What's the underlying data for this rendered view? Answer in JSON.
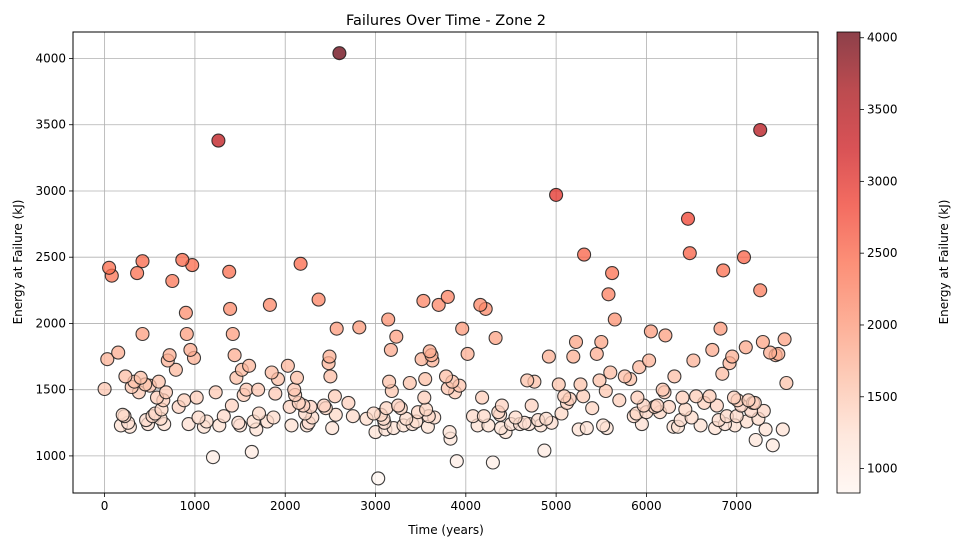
{
  "chart_data": {
    "type": "scatter",
    "title": "Failures Over Time - Zone 2",
    "xlabel": "Time (years)",
    "ylabel": "Energy at Failure (kJ)",
    "xlim": [
      -350,
      7900
    ],
    "ylim": [
      720,
      4200
    ],
    "xticks": [
      0,
      1000,
      2000,
      3000,
      4000,
      5000,
      6000,
      7000
    ],
    "yticks": [
      1000,
      1500,
      2000,
      2500,
      3000,
      3500,
      4000
    ],
    "grid": true,
    "colorbar": {
      "label": "Energy at Failure (kJ)",
      "min": 830,
      "max": 4040,
      "ticks": [
        1000,
        1500,
        2000,
        2500,
        3000,
        3500,
        4000
      ],
      "colormap": "Reds",
      "alpha": 0.75
    },
    "points": [
      [
        0,
        1505
      ],
      [
        30,
        1730
      ],
      [
        50,
        2420
      ],
      [
        80,
        2360
      ],
      [
        150,
        1780
      ],
      [
        180,
        1230
      ],
      [
        200,
        1310
      ],
      [
        220,
        1300
      ],
      [
        230,
        1600
      ],
      [
        260,
        1250
      ],
      [
        280,
        1220
      ],
      [
        300,
        1520
      ],
      [
        330,
        1560
      ],
      [
        360,
        2380
      ],
      [
        380,
        1480
      ],
      [
        400,
        1590
      ],
      [
        420,
        2470
      ],
      [
        420,
        1920
      ],
      [
        450,
        1540
      ],
      [
        460,
        1270
      ],
      [
        480,
        1240
      ],
      [
        500,
        1530
      ],
      [
        530,
        1300
      ],
      [
        560,
        1320
      ],
      [
        580,
        1440
      ],
      [
        600,
        1560
      ],
      [
        620,
        1280
      ],
      [
        630,
        1350
      ],
      [
        650,
        1420
      ],
      [
        660,
        1240
      ],
      [
        680,
        1480
      ],
      [
        700,
        1720
      ],
      [
        720,
        1760
      ],
      [
        750,
        2320
      ],
      [
        790,
        1650
      ],
      [
        820,
        1370
      ],
      [
        860,
        2480
      ],
      [
        880,
        1420
      ],
      [
        900,
        2080
      ],
      [
        910,
        1920
      ],
      [
        930,
        1240
      ],
      [
        950,
        1800
      ],
      [
        970,
        2440
      ],
      [
        990,
        1740
      ],
      [
        1020,
        1440
      ],
      [
        1040,
        1290
      ],
      [
        1100,
        1220
      ],
      [
        1130,
        1260
      ],
      [
        1200,
        990
      ],
      [
        1230,
        1480
      ],
      [
        1260,
        3380
      ],
      [
        1270,
        1230
      ],
      [
        1320,
        1300
      ],
      [
        1380,
        2390
      ],
      [
        1390,
        2110
      ],
      [
        1410,
        1380
      ],
      [
        1420,
        1920
      ],
      [
        1440,
        1760
      ],
      [
        1460,
        1590
      ],
      [
        1480,
        1250
      ],
      [
        1500,
        1230
      ],
      [
        1520,
        1650
      ],
      [
        1540,
        1460
      ],
      [
        1570,
        1500
      ],
      [
        1600,
        1680
      ],
      [
        1630,
        1030
      ],
      [
        1650,
        1260
      ],
      [
        1680,
        1200
      ],
      [
        1700,
        1500
      ],
      [
        1710,
        1320
      ],
      [
        1800,
        1260
      ],
      [
        1830,
        2140
      ],
      [
        1850,
        1630
      ],
      [
        1870,
        1290
      ],
      [
        1890,
        1470
      ],
      [
        1920,
        1580
      ],
      [
        2030,
        1680
      ],
      [
        2050,
        1370
      ],
      [
        2070,
        1230
      ],
      [
        2100,
        1500
      ],
      [
        2110,
        1460
      ],
      [
        2130,
        1590
      ],
      [
        2150,
        1400
      ],
      [
        2170,
        2450
      ],
      [
        2200,
        1380
      ],
      [
        2220,
        1320
      ],
      [
        2240,
        1230
      ],
      [
        2260,
        1250
      ],
      [
        2280,
        1370
      ],
      [
        2300,
        1290
      ],
      [
        2370,
        2180
      ],
      [
        2430,
        1380
      ],
      [
        2450,
        1360
      ],
      [
        2480,
        1700
      ],
      [
        2490,
        1750
      ],
      [
        2500,
        1600
      ],
      [
        2520,
        1210
      ],
      [
        2550,
        1450
      ],
      [
        2560,
        1310
      ],
      [
        2570,
        1960
      ],
      [
        2600,
        4040
      ],
      [
        2700,
        1400
      ],
      [
        2750,
        1300
      ],
      [
        2820,
        1970
      ],
      [
        2900,
        1280
      ],
      [
        2980,
        1320
      ],
      [
        3000,
        1180
      ],
      [
        3030,
        830
      ],
      [
        3060,
        1310
      ],
      [
        3090,
        1280
      ],
      [
        3100,
        1250
      ],
      [
        3110,
        1200
      ],
      [
        3120,
        1360
      ],
      [
        3140,
        2030
      ],
      [
        3150,
        1560
      ],
      [
        3170,
        1800
      ],
      [
        3180,
        1490
      ],
      [
        3200,
        1210
      ],
      [
        3230,
        1900
      ],
      [
        3250,
        1380
      ],
      [
        3280,
        1360
      ],
      [
        3310,
        1230
      ],
      [
        3340,
        1280
      ],
      [
        3380,
        1550
      ],
      [
        3410,
        1240
      ],
      [
        3450,
        1260
      ],
      [
        3470,
        1330
      ],
      [
        3510,
        1730
      ],
      [
        3530,
        2170
      ],
      [
        3540,
        1440
      ],
      [
        3550,
        1580
      ],
      [
        3560,
        1350
      ],
      [
        3580,
        1220
      ],
      [
        3590,
        1300
      ],
      [
        3600,
        1790
      ],
      [
        3620,
        1760
      ],
      [
        3630,
        1720
      ],
      [
        3650,
        1290
      ],
      [
        3700,
        2140
      ],
      [
        3780,
        1600
      ],
      [
        3800,
        1510
      ],
      [
        3800,
        2200
      ],
      [
        3820,
        1180
      ],
      [
        3830,
        1130
      ],
      [
        3850,
        1560
      ],
      [
        3880,
        1480
      ],
      [
        3900,
        960
      ],
      [
        3930,
        1530
      ],
      [
        3960,
        1960
      ],
      [
        4020,
        1770
      ],
      [
        4080,
        1300
      ],
      [
        4130,
        1230
      ],
      [
        4160,
        2140
      ],
      [
        4180,
        1440
      ],
      [
        4200,
        1300
      ],
      [
        4220,
        2110
      ],
      [
        4250,
        1230
      ],
      [
        4300,
        950
      ],
      [
        4330,
        1890
      ],
      [
        4360,
        1330
      ],
      [
        4380,
        1310
      ],
      [
        4390,
        1210
      ],
      [
        4400,
        1380
      ],
      [
        4440,
        1180
      ],
      [
        4500,
        1240
      ],
      [
        4550,
        1290
      ],
      [
        4600,
        1240
      ],
      [
        4650,
        1250
      ],
      [
        4680,
        1570
      ],
      [
        4700,
        1240
      ],
      [
        4730,
        1380
      ],
      [
        4760,
        1560
      ],
      [
        4800,
        1270
      ],
      [
        4830,
        1230
      ],
      [
        4870,
        1040
      ],
      [
        4890,
        1280
      ],
      [
        4920,
        1750
      ],
      [
        4950,
        1250
      ],
      [
        5000,
        2970
      ],
      [
        5030,
        1540
      ],
      [
        5060,
        1320
      ],
      [
        5090,
        1450
      ],
      [
        5120,
        1400
      ],
      [
        5150,
        1430
      ],
      [
        5190,
        1750
      ],
      [
        5220,
        1860
      ],
      [
        5250,
        1200
      ],
      [
        5270,
        1540
      ],
      [
        5300,
        1450
      ],
      [
        5310,
        2520
      ],
      [
        5340,
        1210
      ],
      [
        5400,
        1360
      ],
      [
        5450,
        1770
      ],
      [
        5480,
        1570
      ],
      [
        5500,
        1860
      ],
      [
        5520,
        1230
      ],
      [
        5550,
        1490
      ],
      [
        5560,
        1210
      ],
      [
        5580,
        2220
      ],
      [
        5600,
        1630
      ],
      [
        5620,
        2380
      ],
      [
        5650,
        2030
      ],
      [
        5700,
        1420
      ],
      [
        5760,
        1600
      ],
      [
        5820,
        1580
      ],
      [
        5860,
        1300
      ],
      [
        5890,
        1320
      ],
      [
        5900,
        1440
      ],
      [
        5920,
        1670
      ],
      [
        5950,
        1240
      ],
      [
        5970,
        1380
      ],
      [
        6000,
        1330
      ],
      [
        6030,
        1720
      ],
      [
        6050,
        1940
      ],
      [
        6090,
        1370
      ],
      [
        6120,
        1380
      ],
      [
        6150,
        1330
      ],
      [
        6180,
        1500
      ],
      [
        6200,
        1480
      ],
      [
        6210,
        1910
      ],
      [
        6250,
        1370
      ],
      [
        6300,
        1220
      ],
      [
        6310,
        1600
      ],
      [
        6350,
        1220
      ],
      [
        6380,
        1270
      ],
      [
        6400,
        1440
      ],
      [
        6430,
        1350
      ],
      [
        6460,
        2790
      ],
      [
        6480,
        2530
      ],
      [
        6500,
        1290
      ],
      [
        6520,
        1720
      ],
      [
        6550,
        1450
      ],
      [
        6600,
        1230
      ],
      [
        6640,
        1400
      ],
      [
        6700,
        1450
      ],
      [
        6730,
        1800
      ],
      [
        6760,
        1210
      ],
      [
        6780,
        1380
      ],
      [
        6800,
        1270
      ],
      [
        6820,
        1960
      ],
      [
        6840,
        1620
      ],
      [
        6850,
        2400
      ],
      [
        6870,
        1240
      ],
      [
        6890,
        1300
      ],
      [
        6920,
        1700
      ],
      [
        6950,
        1750
      ],
      [
        6970,
        1440
      ],
      [
        6980,
        1230
      ],
      [
        7000,
        1300
      ],
      [
        7010,
        1420
      ],
      [
        7050,
        1380
      ],
      [
        7080,
        2500
      ],
      [
        7100,
        1820
      ],
      [
        7110,
        1260
      ],
      [
        7130,
        1420
      ],
      [
        7160,
        1340
      ],
      [
        7180,
        1400
      ],
      [
        7200,
        1400
      ],
      [
        7210,
        1120
      ],
      [
        7240,
        1280
      ],
      [
        7260,
        3460
      ],
      [
        7260,
        2250
      ],
      [
        7290,
        1860
      ],
      [
        7300,
        1340
      ],
      [
        7320,
        1200
      ],
      [
        7370,
        1780
      ],
      [
        7400,
        1080
      ],
      [
        7430,
        1760
      ],
      [
        7460,
        1770
      ],
      [
        7510,
        1200
      ],
      [
        7530,
        1880
      ],
      [
        7550,
        1550
      ]
    ]
  }
}
